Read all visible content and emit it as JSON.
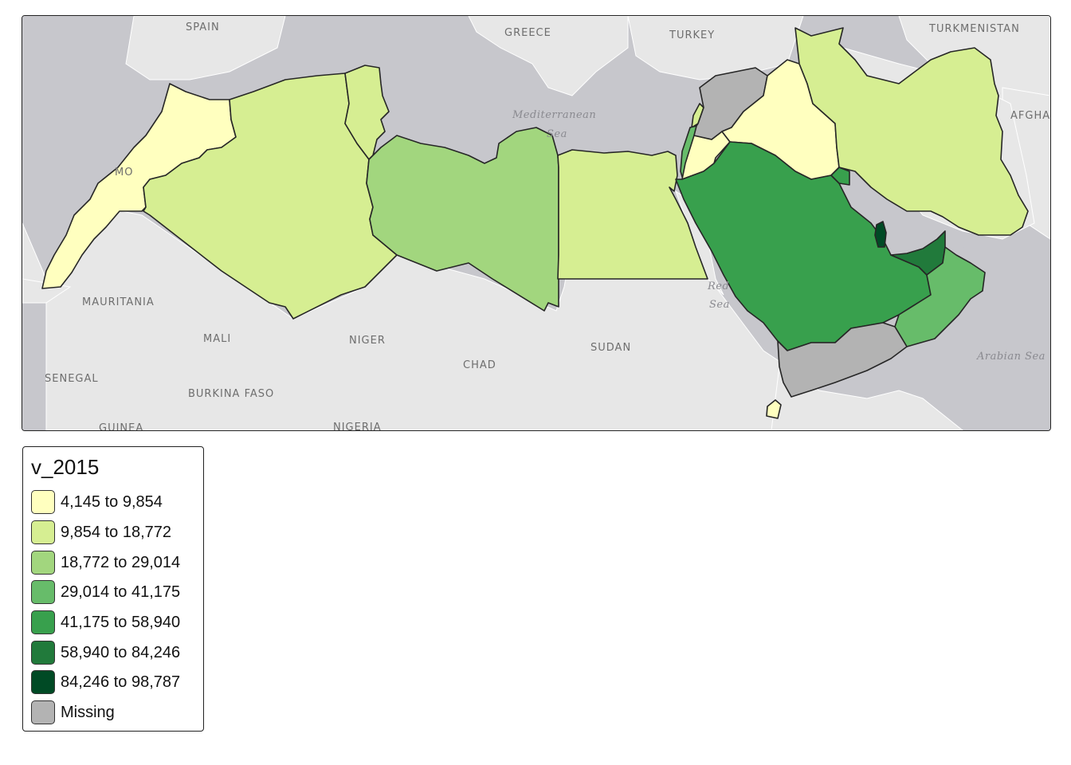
{
  "map": {
    "basemap_labels": [
      "SPAIN",
      "GREECE",
      "TURKEY",
      "TURKMENISTAN",
      "AFGHA",
      "MO",
      "MAURITANIA",
      "MALI",
      "NIGER",
      "CHAD",
      "SUDAN",
      "SENEGAL",
      "BURKINA FASO",
      "GUINEA",
      "NIGERIA"
    ],
    "sea_labels": [
      "Mediterranean",
      "Sea",
      "Red",
      "Sea",
      "Arabian Sea"
    ],
    "colors": {
      "land": "#e7e7e7",
      "water": "#c7c7cc",
      "class1": "#ffffbf",
      "class2": "#d6ee92",
      "class3": "#a2d67e",
      "class4": "#67bc6a",
      "class5": "#38a04d",
      "class6": "#217a3b",
      "class7": "#004a25",
      "missing": "#b3b3b3"
    },
    "regions": [
      {
        "name": "Morocco",
        "class": "class1"
      },
      {
        "name": "Algeria",
        "class": "class2"
      },
      {
        "name": "Tunisia",
        "class": "class2"
      },
      {
        "name": "Libya",
        "class": "class3"
      },
      {
        "name": "Egypt",
        "class": "class2"
      },
      {
        "name": "Lebanon",
        "class": "class2"
      },
      {
        "name": "Israel",
        "class": "class4"
      },
      {
        "name": "Jordan",
        "class": "class1"
      },
      {
        "name": "Syria",
        "class": "missing"
      },
      {
        "name": "Iraq",
        "class": "class1"
      },
      {
        "name": "Iran",
        "class": "class2"
      },
      {
        "name": "Saudi Arabia",
        "class": "class5"
      },
      {
        "name": "Kuwait",
        "class": "class5"
      },
      {
        "name": "Bahrain",
        "class": "class5"
      },
      {
        "name": "Qatar",
        "class": "class7"
      },
      {
        "name": "United Arab Emirates",
        "class": "class6"
      },
      {
        "name": "Oman",
        "class": "class4"
      },
      {
        "name": "Yemen",
        "class": "missing"
      },
      {
        "name": "Djibouti",
        "class": "class1"
      }
    ]
  },
  "legend": {
    "title": "v_2015",
    "items": [
      {
        "label": "4,145 to 9,854",
        "color": "#ffffbf"
      },
      {
        "label": "9,854 to 18,772",
        "color": "#d6ee92"
      },
      {
        "label": "18,772 to 29,014",
        "color": "#a2d67e"
      },
      {
        "label": "29,014 to 41,175",
        "color": "#67bc6a"
      },
      {
        "label": "41,175 to 58,940",
        "color": "#38a04d"
      },
      {
        "label": "58,940 to 84,246",
        "color": "#217a3b"
      },
      {
        "label": "84,246 to 98,787",
        "color": "#004a25"
      },
      {
        "label": "Missing",
        "color": "#b3b3b3"
      }
    ]
  }
}
